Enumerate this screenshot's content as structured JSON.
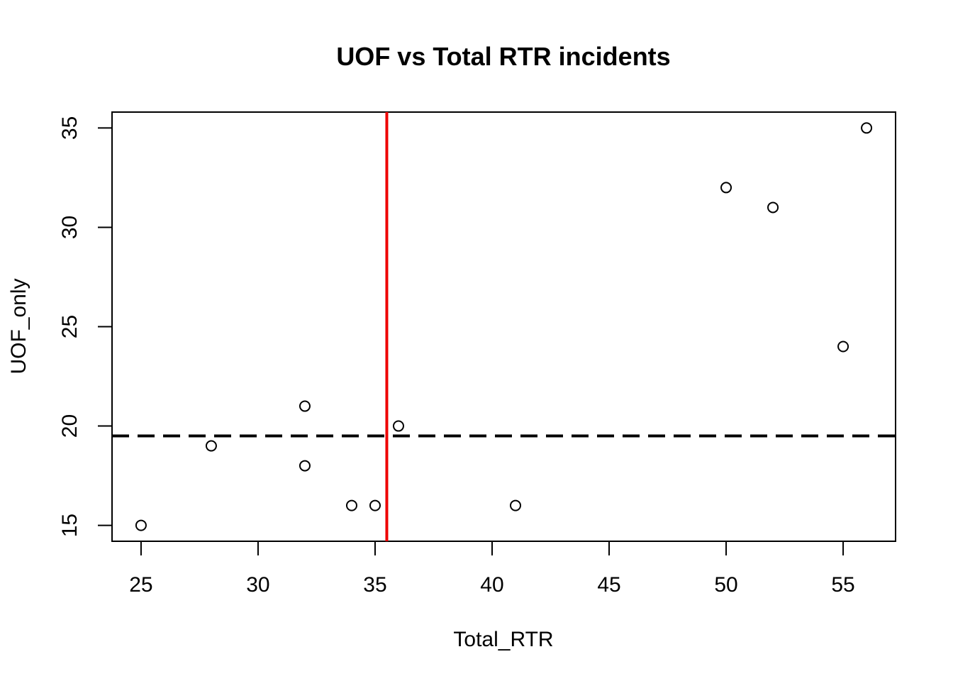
{
  "chart_data": {
    "type": "scatter",
    "title": "UOF vs Total RTR incidents",
    "xlabel": "Total_RTR",
    "ylabel": "UOF_only",
    "xlim": [
      23.76,
      57.24
    ],
    "ylim": [
      14.2,
      35.8
    ],
    "x_ticks": [
      25,
      30,
      35,
      40,
      45,
      50,
      55
    ],
    "y_ticks": [
      15,
      20,
      25,
      30,
      35
    ],
    "grid": false,
    "points": [
      {
        "x": 25,
        "y": 15
      },
      {
        "x": 28,
        "y": 19
      },
      {
        "x": 32,
        "y": 21
      },
      {
        "x": 32,
        "y": 18
      },
      {
        "x": 34,
        "y": 16
      },
      {
        "x": 35,
        "y": 16
      },
      {
        "x": 36,
        "y": 20
      },
      {
        "x": 41,
        "y": 16
      },
      {
        "x": 50,
        "y": 32
      },
      {
        "x": 52,
        "y": 31
      },
      {
        "x": 55,
        "y": 24
      },
      {
        "x": 56,
        "y": 35
      }
    ],
    "reference_lines": [
      {
        "orientation": "vertical",
        "value": 35.5,
        "color": "#ee0000",
        "style": "solid"
      },
      {
        "orientation": "horizontal",
        "value": 19.5,
        "color": "#000000",
        "style": "dashed"
      }
    ]
  }
}
